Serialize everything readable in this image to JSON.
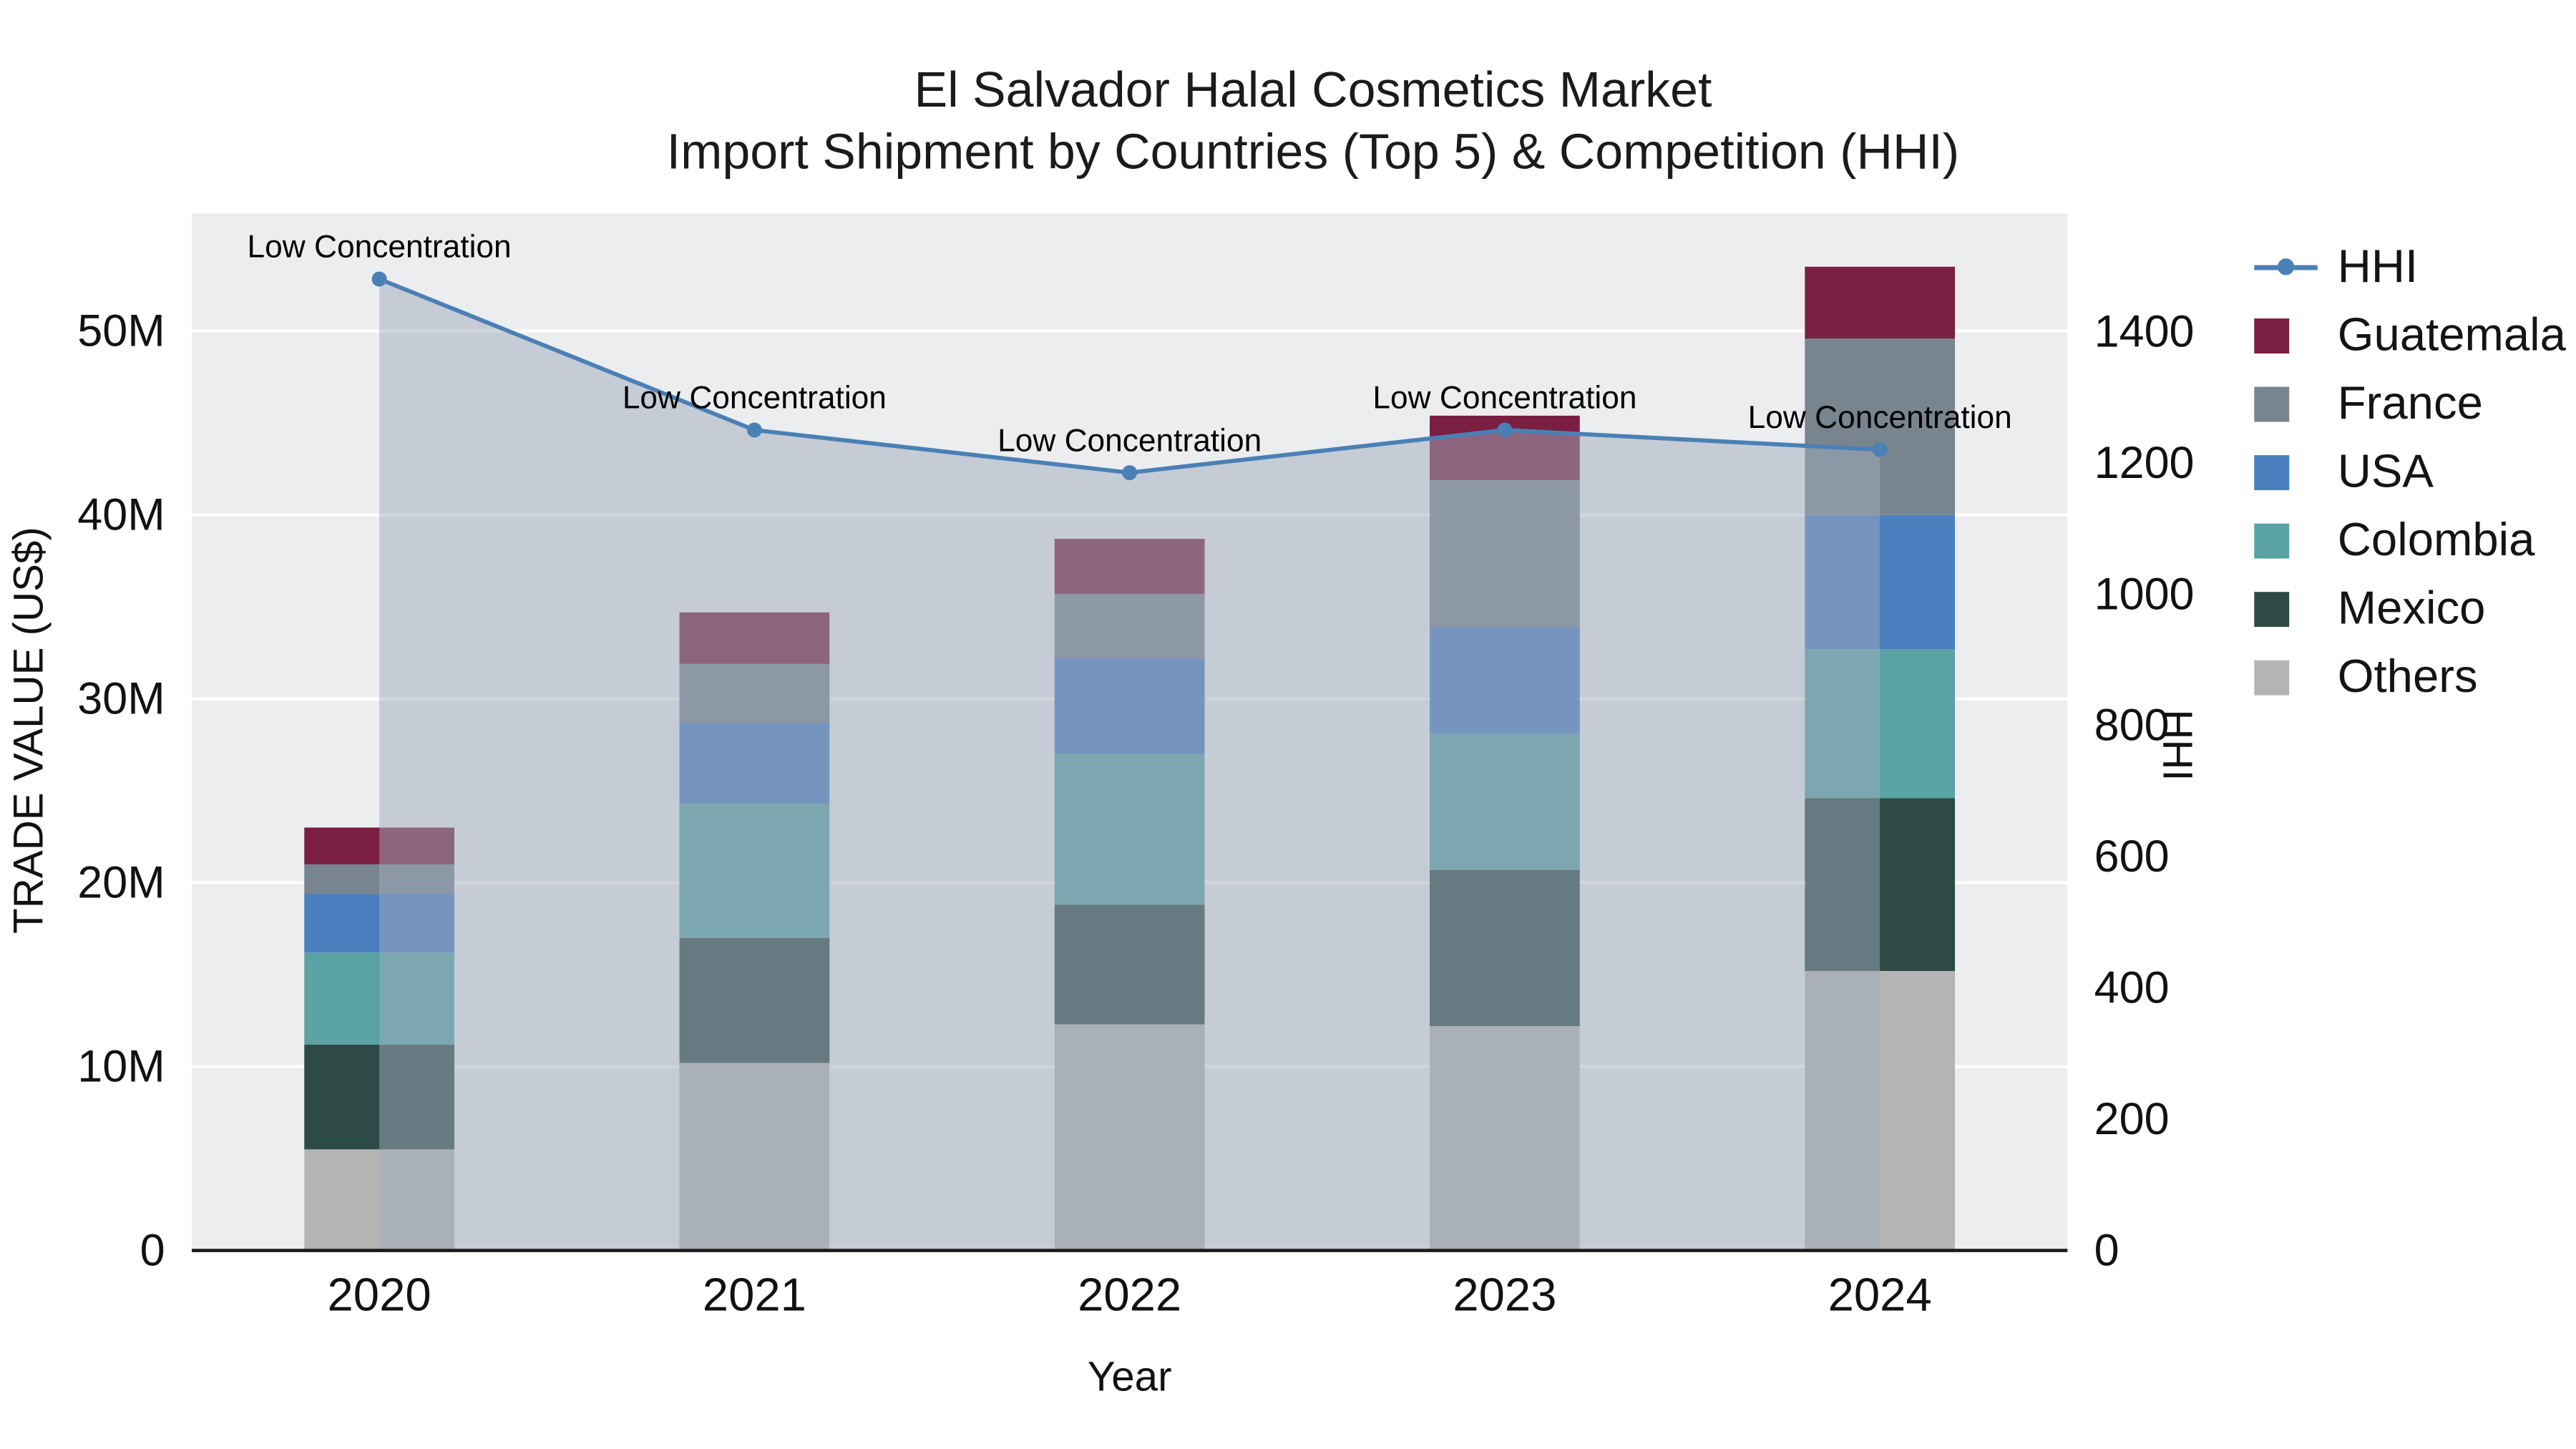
{
  "title": {
    "line1": "El Salvador Halal Cosmetics Market",
    "line2": "Import Shipment by Countries (Top 5) & Competition (HHI)"
  },
  "axes": {
    "x_label": "Year",
    "y_left_label": "TRADE VALUE (US$)",
    "y_right_label": "HHI"
  },
  "legend": {
    "items": [
      {
        "label": "HHI",
        "type": "line",
        "color": "#4a80b5"
      },
      {
        "label": "Guatemala",
        "type": "square",
        "color": "#7a1f41"
      },
      {
        "label": "France",
        "type": "square",
        "color": "#78858f"
      },
      {
        "label": "USA",
        "type": "square",
        "color": "#4a7fc0"
      },
      {
        "label": "Colombia",
        "type": "square",
        "color": "#5aa2a4"
      },
      {
        "label": "Mexico",
        "type": "square",
        "color": "#2d4a47"
      },
      {
        "label": "Others",
        "type": "square",
        "color": "#b4b4b4"
      }
    ]
  },
  "chart_data": {
    "type": "bar",
    "subtype": "stacked-bars-with-line-on-secondary-axis",
    "title": "El Salvador Halal Cosmetics Market — Import Shipment by Countries (Top 5) & Competition (HHI)",
    "categories": [
      "2020",
      "2021",
      "2022",
      "2023",
      "2024"
    ],
    "unit": "US$ millions",
    "bar_series": [
      {
        "name": "Others",
        "color": "#b4b4b4",
        "values": [
          5.5,
          10.2,
          12.3,
          12.2,
          15.2
        ]
      },
      {
        "name": "Mexico",
        "color": "#2d4a47",
        "values": [
          5.7,
          6.8,
          6.5,
          8.5,
          9.4
        ]
      },
      {
        "name": "Colombia",
        "color": "#5aa2a4",
        "values": [
          5.0,
          7.3,
          8.2,
          7.4,
          8.1
        ]
      },
      {
        "name": "USA",
        "color": "#4a7fc0",
        "values": [
          3.2,
          4.4,
          5.2,
          5.8,
          7.3
        ]
      },
      {
        "name": "France",
        "color": "#78858f",
        "values": [
          1.6,
          3.2,
          3.5,
          8.0,
          9.6
        ]
      },
      {
        "name": "Guatemala",
        "color": "#7a1f41",
        "values": [
          2.0,
          2.8,
          3.0,
          3.5,
          3.9
        ]
      }
    ],
    "line_series": {
      "name": "HHI",
      "axis": "right",
      "color": "#4a80b5",
      "fill": "rgba(160,172,188,0.5)",
      "values": [
        1480,
        1250,
        1185,
        1250,
        1220
      ],
      "annotations": [
        "Low Concentration",
        "Low Concentration",
        "Low Concentration",
        "Low Concentration",
        "Low Concentration"
      ]
    },
    "y_left": {
      "label": "TRADE VALUE (US$)",
      "range": [
        0,
        56.4
      ],
      "ticks": [
        0,
        10,
        20,
        30,
        40,
        50
      ],
      "tick_labels": [
        "0",
        "10M",
        "20M",
        "30M",
        "40M",
        "50M"
      ]
    },
    "y_right": {
      "label": "HHI",
      "range": [
        0,
        1580
      ],
      "ticks": [
        0,
        200,
        400,
        600,
        800,
        1000,
        1200,
        1400
      ]
    },
    "x_label": "Year",
    "grid": "horizontal-white",
    "legend_position": "right",
    "plot_background": "#ebedef"
  }
}
